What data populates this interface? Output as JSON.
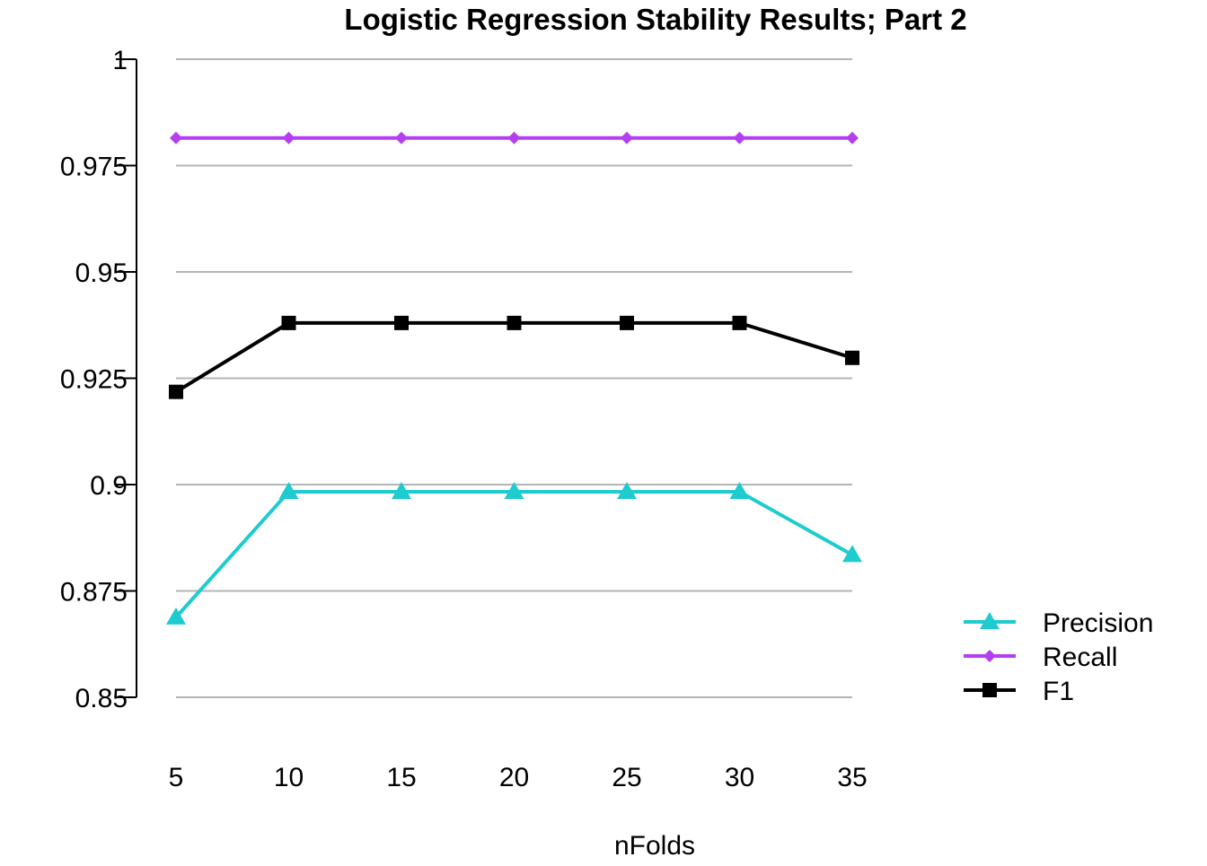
{
  "chart_data": {
    "type": "line",
    "title": "Logistic Regression Stability Results; Part 2",
    "xlabel": "nFolds",
    "ylabel": "",
    "x": [
      5,
      10,
      15,
      20,
      25,
      30,
      35
    ],
    "x_tick_labels": [
      "5",
      "10",
      "15",
      "20",
      "25",
      "30",
      "35"
    ],
    "ylim": [
      0.85,
      1
    ],
    "y_ticks": [
      0.85,
      0.875,
      0.9,
      0.925,
      0.95,
      0.975,
      1
    ],
    "y_tick_labels": [
      "0.85",
      "0.875",
      "0.9",
      "0.925",
      "0.95",
      "0.975",
      "1"
    ],
    "grid": "horizontal",
    "legend_position": "right",
    "series": [
      {
        "name": "Precision",
        "values": [
          0.8688,
          0.8983,
          0.8983,
          0.8983,
          0.8983,
          0.8983,
          0.8835
        ],
        "color": "#1ecbcf",
        "marker": "triangle"
      },
      {
        "name": "Recall",
        "values": [
          0.9815,
          0.9815,
          0.9815,
          0.9815,
          0.9815,
          0.9815,
          0.9815
        ],
        "color": "#b43ff0",
        "marker": "diamond"
      },
      {
        "name": "F1",
        "values": [
          0.9218,
          0.938,
          0.938,
          0.938,
          0.938,
          0.938,
          0.9298
        ],
        "color": "#000000",
        "marker": "square"
      }
    ]
  }
}
